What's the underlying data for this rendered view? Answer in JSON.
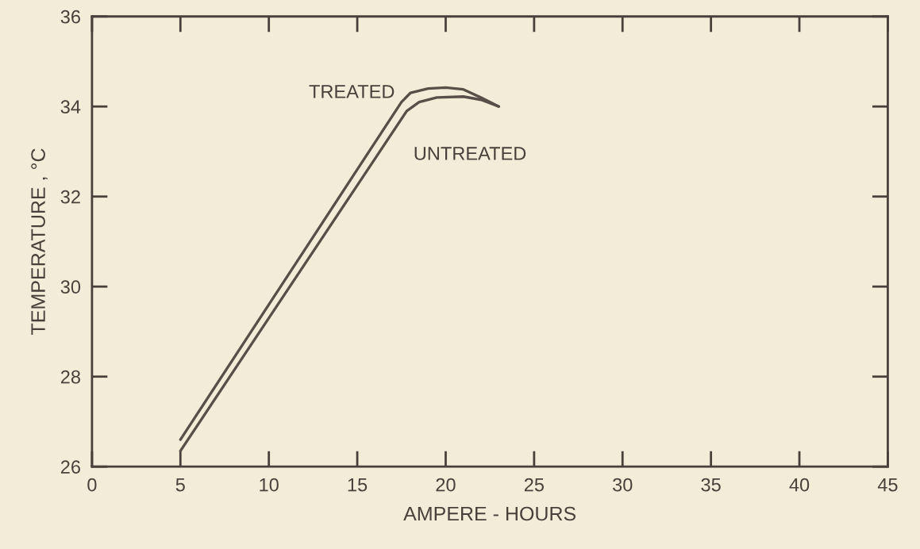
{
  "chart_data": {
    "type": "line",
    "xlabel": "AMPERE - HOURS",
    "ylabel": "TEMPERATURE , °C",
    "xlim": [
      0,
      45
    ],
    "xticks": [
      0,
      5,
      10,
      15,
      20,
      25,
      30,
      35,
      40,
      45
    ],
    "ylim": [
      26,
      36
    ],
    "yticks": [
      26,
      28,
      30,
      32,
      34,
      36
    ],
    "grid": false,
    "legend": false,
    "marker": "none",
    "line_style": "solid",
    "series": [
      {
        "name": "TREATED",
        "color": "#5a4e48",
        "x": [
          5,
          10,
          15,
          17.5,
          18,
          19,
          20,
          21,
          22,
          23
        ],
        "values": [
          26.6,
          29.6,
          32.6,
          34.1,
          34.3,
          34.4,
          34.42,
          34.38,
          34.2,
          34.0
        ]
      },
      {
        "name": "UNTREATED",
        "color": "#5a4e48",
        "x": [
          5,
          10,
          15,
          17.8,
          18.5,
          19.5,
          21,
          22,
          23
        ],
        "values": [
          26.35,
          29.3,
          32.25,
          33.9,
          34.1,
          34.2,
          34.22,
          34.15,
          34.0
        ]
      }
    ]
  }
}
